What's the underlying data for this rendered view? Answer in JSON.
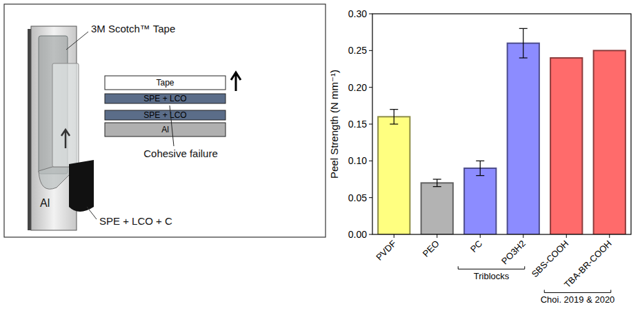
{
  "diagram": {
    "tape_label": "3M Scotch™ Tape",
    "sample_label": "SPE + LCO + C",
    "plate_label": "Al",
    "layers": [
      "Tape",
      "SPE + LCO",
      "SPE + LCO",
      "Al"
    ],
    "failure_label": "Cohesive failure"
  },
  "chart_data": {
    "type": "bar",
    "y_label": "Peel Strength (N mm⁻¹)",
    "categories": [
      "PVDF",
      "PEO",
      "PC",
      "PO3H2",
      "SBS-COOH",
      "TBA-BR-COOH"
    ],
    "values": [
      0.16,
      0.07,
      0.09,
      0.26,
      0.24,
      0.25
    ],
    "errors": [
      0.01,
      0.005,
      0.01,
      0.02,
      null,
      null
    ],
    "colors": [
      "#ffff80",
      "#b3b3b3",
      "#8c8cff",
      "#8c8cff",
      "#ff6b6b",
      "#ff6b6b"
    ],
    "ylim": [
      0,
      0.3
    ],
    "yticks": [
      {
        "value": 0,
        "label": "0.00"
      },
      {
        "value": 0.05,
        "label": "0.05"
      },
      {
        "value": 0.1,
        "label": "0.10"
      },
      {
        "value": 0.15,
        "label": "0.15"
      },
      {
        "value": 0.2,
        "label": "0.20"
      },
      {
        "value": 0.25,
        "label": "0.25"
      },
      {
        "value": 0.3,
        "label": "0.30"
      }
    ],
    "grid": false,
    "annotations": [
      {
        "text": "Triblocks",
        "from": "PC",
        "to": "PO3H2"
      },
      {
        "text": "Choi. 2019 & 2020",
        "from": "SBS-COOH",
        "to": "TBA-BR-COOH"
      }
    ]
  }
}
